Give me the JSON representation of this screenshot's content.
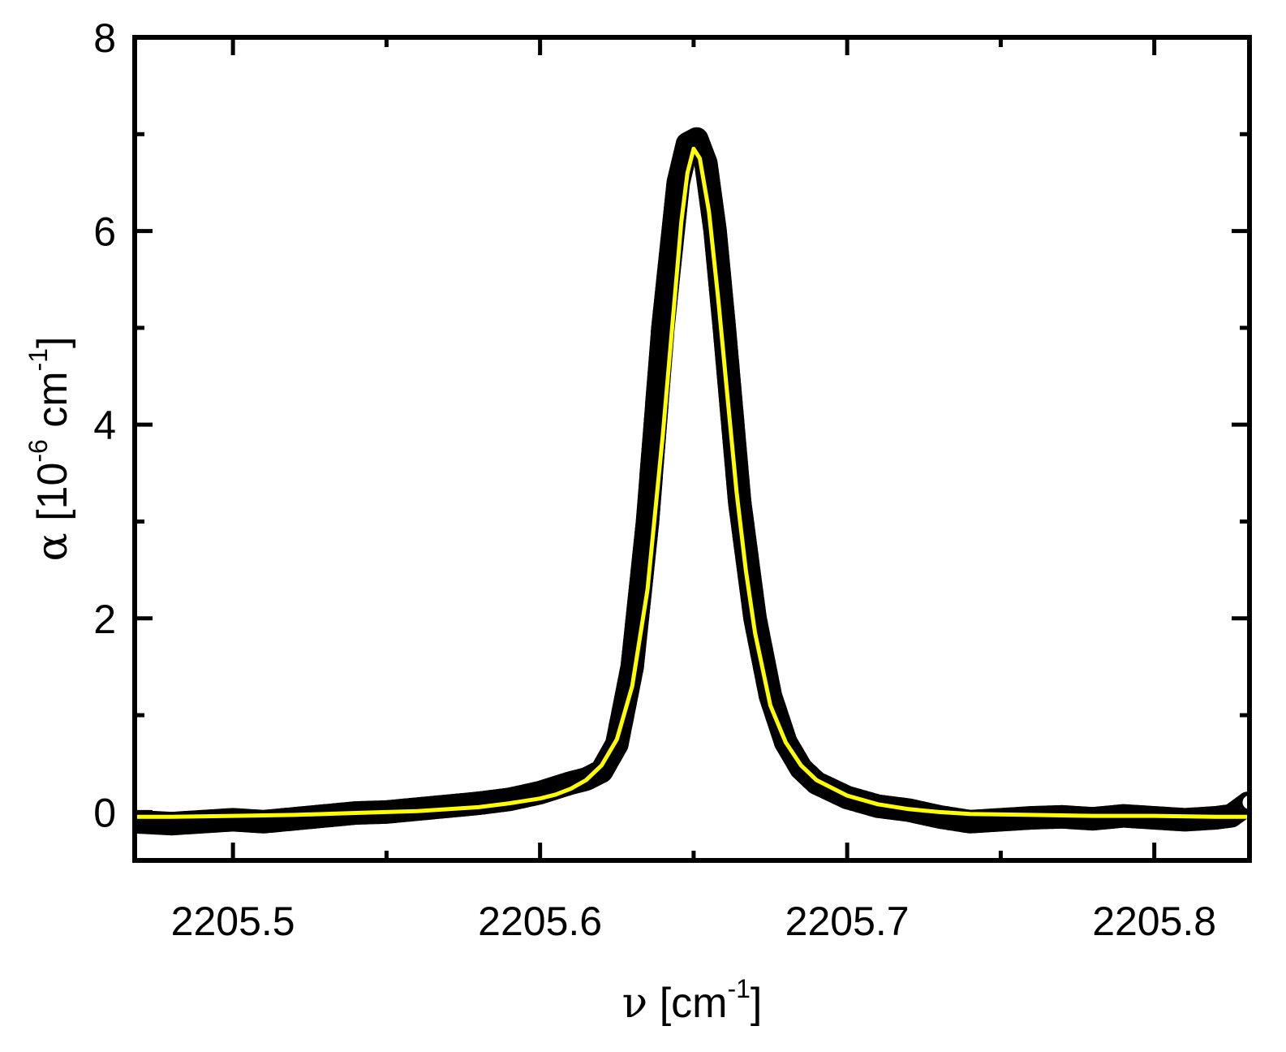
{
  "chart_data": {
    "type": "line",
    "xlabel": {
      "symbol": "ν",
      "open": " [cm",
      "sup": "-1",
      "close": "]"
    },
    "ylabel": {
      "symbol": "α",
      "open": " [10",
      "sup1": "-6",
      "mid": " cm",
      "sup2": "-1",
      "close": "]"
    },
    "xlim": [
      2205.468,
      2205.831
    ],
    "ylim": [
      -0.5,
      8
    ],
    "x_ticks": [
      2205.5,
      2205.6,
      2205.7,
      2205.8
    ],
    "x_tick_labels": [
      "2205.5",
      "2205.6",
      "2205.7",
      "2205.8"
    ],
    "x_minor_ticks": [
      2205.55,
      2205.65,
      2205.75
    ],
    "y_ticks": [
      0,
      2,
      4,
      6,
      8
    ],
    "y_tick_labels": [
      "0",
      "2",
      "4",
      "6",
      "8"
    ],
    "y_minor_ticks": [
      1,
      3,
      5,
      7
    ],
    "grid": false,
    "legend": "none",
    "series": [
      {
        "style": "markers",
        "marker_fill": "#ffffff",
        "marker_edge": "#000000",
        "x": [
          2205.468,
          2205.48,
          2205.49,
          2205.5,
          2205.51,
          2205.52,
          2205.53,
          2205.54,
          2205.55,
          2205.56,
          2205.57,
          2205.58,
          2205.59,
          2205.6,
          2205.605,
          2205.61,
          2205.615,
          2205.62,
          2205.625,
          2205.63,
          2205.635,
          2205.64,
          2205.645,
          2205.648,
          2205.651,
          2205.654,
          2205.657,
          2205.66,
          2205.665,
          2205.67,
          2205.675,
          2205.68,
          2205.685,
          2205.69,
          2205.7,
          2205.71,
          2205.72,
          2205.73,
          2205.74,
          2205.75,
          2205.76,
          2205.77,
          2205.78,
          2205.79,
          2205.8,
          2205.81,
          2205.82,
          2205.825,
          2205.831
        ],
        "y": [
          -0.1,
          -0.12,
          -0.1,
          -0.08,
          -0.1,
          -0.07,
          -0.04,
          -0.01,
          0.0,
          0.03,
          0.06,
          0.09,
          0.13,
          0.2,
          0.25,
          0.3,
          0.34,
          0.42,
          0.7,
          1.5,
          3.0,
          5.0,
          6.5,
          6.9,
          6.95,
          6.7,
          6.0,
          5.0,
          3.2,
          2.0,
          1.2,
          0.72,
          0.45,
          0.3,
          0.15,
          0.06,
          0.02,
          -0.05,
          -0.1,
          -0.08,
          -0.06,
          -0.05,
          -0.07,
          -0.04,
          -0.06,
          -0.08,
          -0.06,
          -0.04,
          0.1
        ]
      },
      {
        "style": "line",
        "color": "#ffff00",
        "x": [
          2205.468,
          2205.48,
          2205.5,
          2205.52,
          2205.54,
          2205.56,
          2205.58,
          2205.59,
          2205.6,
          2205.605,
          2205.61,
          2205.615,
          2205.62,
          2205.625,
          2205.63,
          2205.635,
          2205.64,
          2205.643,
          2205.646,
          2205.648,
          2205.65,
          2205.652,
          2205.655,
          2205.658,
          2205.661,
          2205.664,
          2205.667,
          2205.67,
          2205.675,
          2205.68,
          2205.685,
          2205.69,
          2205.7,
          2205.71,
          2205.72,
          2205.73,
          2205.74,
          2205.76,
          2205.78,
          2205.8,
          2205.82,
          2205.831
        ],
        "y": [
          -0.05,
          -0.05,
          -0.04,
          -0.03,
          -0.01,
          0.01,
          0.05,
          0.09,
          0.14,
          0.18,
          0.24,
          0.33,
          0.48,
          0.75,
          1.3,
          2.3,
          3.9,
          5.0,
          6.1,
          6.6,
          6.85,
          6.75,
          6.2,
          5.3,
          4.3,
          3.3,
          2.5,
          1.85,
          1.1,
          0.72,
          0.48,
          0.33,
          0.17,
          0.08,
          0.03,
          0.0,
          -0.02,
          -0.03,
          -0.04,
          -0.04,
          -0.05,
          -0.05
        ]
      }
    ]
  }
}
